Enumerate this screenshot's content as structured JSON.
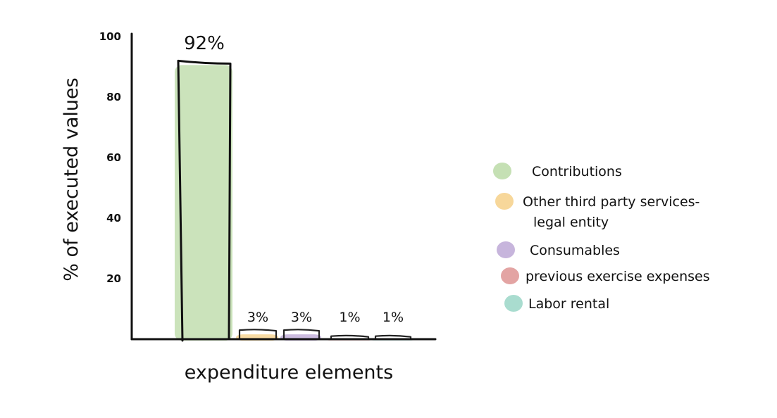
{
  "chart_data": {
    "type": "bar",
    "title": "",
    "xlabel": "expenditure elements",
    "ylabel": "% of executed values",
    "ylim": [
      0,
      100
    ],
    "yticks": [
      20,
      40,
      60,
      80,
      100
    ],
    "grid": false,
    "legend_position": "right",
    "categories": [
      "Contributions",
      "Other third party services- legal entity",
      "Consumables",
      "previous exercise expenses",
      "Labor rental"
    ],
    "values": [
      92,
      3,
      3,
      1,
      1
    ],
    "value_labels": [
      "92%",
      "3%",
      "3%",
      "1%",
      "1%"
    ],
    "legend": [
      {
        "lines": [
          "Contributions"
        ],
        "color": "#c5e0b4"
      },
      {
        "lines": [
          "Other third party services-",
          "legal entity"
        ],
        "color": "#f7d79a"
      },
      {
        "lines": [
          "Consumables"
        ],
        "color": "#c7b5dc"
      },
      {
        "lines": [
          "previous exercise expenses"
        ],
        "color": "#e3a4a3"
      },
      {
        "lines": [
          "Labor rental"
        ],
        "color": "#a9dccf"
      }
    ]
  }
}
